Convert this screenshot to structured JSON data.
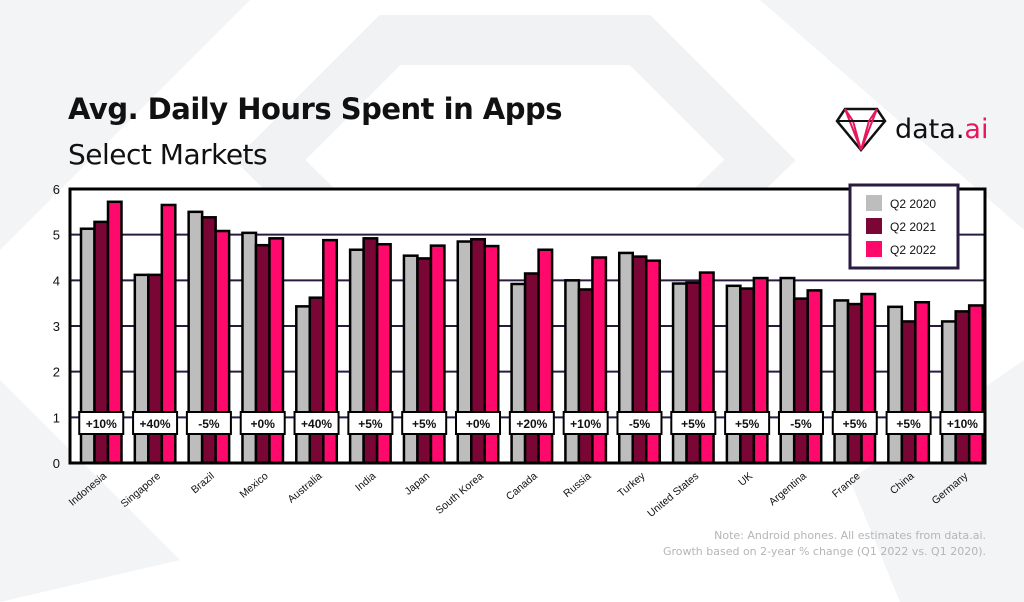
{
  "header": {
    "title": "Avg. Daily Hours Spent in Apps",
    "subtitle": "Select Markets"
  },
  "logo": {
    "text_main": "data.",
    "text_accent": "ai"
  },
  "note": {
    "line1": "Note: Android phones. All estimates from data.ai.",
    "line2": "Growth based on 2-year % change (Q1 2022 vs. Q1 2020)."
  },
  "colors": {
    "q2_2020": "#bdbdbd",
    "q2_2021": "#7a0635",
    "q2_2022": "#ff0a6c",
    "grid": "#2a1a40",
    "accent": "#e8175d"
  },
  "chart_data": {
    "type": "bar",
    "title": "Avg. Daily Hours Spent in Apps",
    "subtitle": "Select Markets",
    "xlabel": "",
    "ylabel": "",
    "ylim": [
      0,
      6
    ],
    "yticks": [
      0,
      1,
      2,
      3,
      4,
      5,
      6
    ],
    "grid": true,
    "legend": "top-right",
    "categories": [
      "Indonesia",
      "Singapore",
      "Brazil",
      "Mexico",
      "Australia",
      "India",
      "Japan",
      "South Korea",
      "Canada",
      "Russia",
      "Turkey",
      "United States",
      "UK",
      "Argentina",
      "France",
      "China",
      "Germany"
    ],
    "series": [
      {
        "name": "Q2 2020",
        "values": [
          5.13,
          4.12,
          5.5,
          5.04,
          3.43,
          4.67,
          4.54,
          4.85,
          3.92,
          4.0,
          4.6,
          3.93,
          3.88,
          4.05,
          3.56,
          3.42,
          3.1
        ]
      },
      {
        "name": "Q2 2021",
        "values": [
          5.28,
          4.12,
          5.38,
          4.77,
          3.62,
          4.92,
          4.48,
          4.9,
          4.15,
          3.8,
          4.52,
          3.95,
          3.82,
          3.6,
          3.48,
          3.1,
          3.32
        ]
      },
      {
        "name": "Q2 2022",
        "values": [
          5.72,
          5.65,
          5.08,
          4.92,
          4.88,
          4.79,
          4.76,
          4.75,
          4.67,
          4.5,
          4.43,
          4.17,
          4.05,
          3.78,
          3.7,
          3.52,
          3.45
        ]
      }
    ],
    "annotations": [
      "+10%",
      "+40%",
      "-5%",
      "+0%",
      "+40%",
      "+5%",
      "+5%",
      "+0%",
      "+20%",
      "+10%",
      "-5%",
      "+5%",
      "+5%",
      "-5%",
      "+5%",
      "+5%",
      "+10%"
    ]
  }
}
